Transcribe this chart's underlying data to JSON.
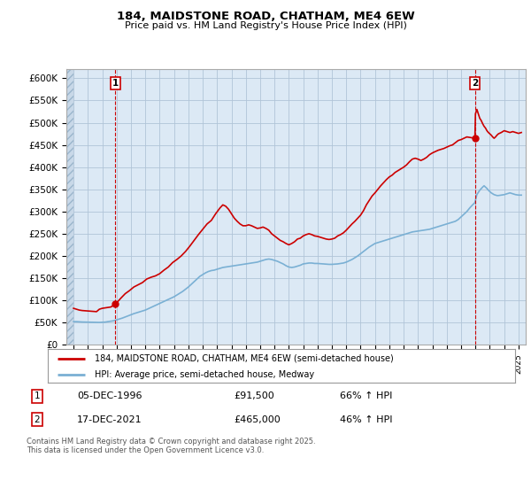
{
  "title": "184, MAIDSTONE ROAD, CHATHAM, ME4 6EW",
  "subtitle": "Price paid vs. HM Land Registry's House Price Index (HPI)",
  "ylim": [
    0,
    620000
  ],
  "yticks": [
    0,
    50000,
    100000,
    150000,
    200000,
    250000,
    300000,
    350000,
    400000,
    450000,
    500000,
    550000,
    600000
  ],
  "ytick_labels": [
    "£0",
    "£50K",
    "£100K",
    "£150K",
    "£200K",
    "£250K",
    "£300K",
    "£350K",
    "£400K",
    "£450K",
    "£500K",
    "£550K",
    "£600K"
  ],
  "xlim_start": 1993.5,
  "xlim_end": 2025.5,
  "xticks": [
    1994,
    1995,
    1996,
    1997,
    1998,
    1999,
    2000,
    2001,
    2002,
    2003,
    2004,
    2005,
    2006,
    2007,
    2008,
    2009,
    2010,
    2011,
    2012,
    2013,
    2014,
    2015,
    2016,
    2017,
    2018,
    2019,
    2020,
    2021,
    2022,
    2023,
    2024,
    2025
  ],
  "price_paid_color": "#cc0000",
  "hpi_color": "#7ab0d4",
  "marker1_year": 1996.92,
  "marker1_price": 91500,
  "marker2_year": 2021.96,
  "marker2_price": 465000,
  "legend_label_red": "184, MAIDSTONE ROAD, CHATHAM, ME4 6EW (semi-detached house)",
  "legend_label_blue": "HPI: Average price, semi-detached house, Medway",
  "table_row1": [
    "1",
    "05-DEC-1996",
    "£91,500",
    "66% ↑ HPI"
  ],
  "table_row2": [
    "2",
    "17-DEC-2021",
    "£465,000",
    "46% ↑ HPI"
  ],
  "footnote": "Contains HM Land Registry data © Crown copyright and database right 2025.\nThis data is licensed under the Open Government Licence v3.0.",
  "bg_color": "#ffffff",
  "chart_bg_color": "#dce9f5",
  "grid_color": "#b0c4d8",
  "hatch_bg_color": "#c8d8e8",
  "price_paid_data": [
    [
      1994.0,
      82000
    ],
    [
      1994.2,
      80000
    ],
    [
      1994.4,
      78000
    ],
    [
      1994.6,
      77000
    ],
    [
      1994.8,
      76500
    ],
    [
      1995.0,
      76000
    ],
    [
      1995.2,
      75500
    ],
    [
      1995.4,
      75000
    ],
    [
      1995.6,
      74500
    ],
    [
      1995.8,
      80000
    ],
    [
      1996.0,
      82000
    ],
    [
      1996.2,
      83000
    ],
    [
      1996.4,
      84000
    ],
    [
      1996.6,
      85000
    ],
    [
      1996.92,
      91500
    ],
    [
      1997.1,
      98000
    ],
    [
      1997.3,
      105000
    ],
    [
      1997.6,
      115000
    ],
    [
      1997.9,
      122000
    ],
    [
      1998.2,
      130000
    ],
    [
      1998.5,
      135000
    ],
    [
      1998.8,
      140000
    ],
    [
      1999.1,
      148000
    ],
    [
      1999.4,
      152000
    ],
    [
      1999.7,
      155000
    ],
    [
      2000.0,
      160000
    ],
    [
      2000.3,
      168000
    ],
    [
      2000.6,
      175000
    ],
    [
      2000.9,
      185000
    ],
    [
      2001.2,
      192000
    ],
    [
      2001.5,
      200000
    ],
    [
      2001.8,
      210000
    ],
    [
      2002.1,
      222000
    ],
    [
      2002.4,
      235000
    ],
    [
      2002.7,
      248000
    ],
    [
      2003.0,
      260000
    ],
    [
      2003.3,
      272000
    ],
    [
      2003.6,
      280000
    ],
    [
      2003.9,
      295000
    ],
    [
      2004.2,
      308000
    ],
    [
      2004.4,
      315000
    ],
    [
      2004.6,
      312000
    ],
    [
      2004.8,
      305000
    ],
    [
      2005.0,
      295000
    ],
    [
      2005.2,
      285000
    ],
    [
      2005.4,
      278000
    ],
    [
      2005.6,
      272000
    ],
    [
      2005.8,
      268000
    ],
    [
      2006.0,
      268000
    ],
    [
      2006.2,
      270000
    ],
    [
      2006.4,
      268000
    ],
    [
      2006.6,
      265000
    ],
    [
      2006.8,
      262000
    ],
    [
      2007.0,
      263000
    ],
    [
      2007.2,
      265000
    ],
    [
      2007.4,
      262000
    ],
    [
      2007.6,
      258000
    ],
    [
      2007.8,
      250000
    ],
    [
      2008.0,
      245000
    ],
    [
      2008.2,
      240000
    ],
    [
      2008.4,
      235000
    ],
    [
      2008.6,
      232000
    ],
    [
      2008.8,
      228000
    ],
    [
      2009.0,
      225000
    ],
    [
      2009.2,
      228000
    ],
    [
      2009.4,
      232000
    ],
    [
      2009.6,
      238000
    ],
    [
      2009.8,
      240000
    ],
    [
      2010.0,
      245000
    ],
    [
      2010.2,
      248000
    ],
    [
      2010.4,
      250000
    ],
    [
      2010.6,
      248000
    ],
    [
      2010.8,
      245000
    ],
    [
      2011.0,
      244000
    ],
    [
      2011.2,
      242000
    ],
    [
      2011.4,
      240000
    ],
    [
      2011.6,
      238000
    ],
    [
      2011.8,
      237000
    ],
    [
      2012.0,
      238000
    ],
    [
      2012.2,
      240000
    ],
    [
      2012.4,
      245000
    ],
    [
      2012.6,
      248000
    ],
    [
      2012.8,
      252000
    ],
    [
      2013.0,
      258000
    ],
    [
      2013.2,
      265000
    ],
    [
      2013.4,
      272000
    ],
    [
      2013.6,
      278000
    ],
    [
      2013.8,
      285000
    ],
    [
      2014.0,
      292000
    ],
    [
      2014.2,
      302000
    ],
    [
      2014.4,
      315000
    ],
    [
      2014.6,
      325000
    ],
    [
      2014.8,
      335000
    ],
    [
      2015.0,
      342000
    ],
    [
      2015.2,
      350000
    ],
    [
      2015.4,
      358000
    ],
    [
      2015.6,
      365000
    ],
    [
      2015.8,
      372000
    ],
    [
      2016.0,
      378000
    ],
    [
      2016.2,
      382000
    ],
    [
      2016.4,
      388000
    ],
    [
      2016.6,
      392000
    ],
    [
      2016.8,
      396000
    ],
    [
      2017.0,
      400000
    ],
    [
      2017.2,
      405000
    ],
    [
      2017.4,
      412000
    ],
    [
      2017.6,
      418000
    ],
    [
      2017.8,
      420000
    ],
    [
      2018.0,
      418000
    ],
    [
      2018.2,
      415000
    ],
    [
      2018.4,
      418000
    ],
    [
      2018.6,
      422000
    ],
    [
      2018.8,
      428000
    ],
    [
      2019.0,
      432000
    ],
    [
      2019.2,
      435000
    ],
    [
      2019.4,
      438000
    ],
    [
      2019.6,
      440000
    ],
    [
      2019.8,
      442000
    ],
    [
      2020.0,
      445000
    ],
    [
      2020.2,
      448000
    ],
    [
      2020.4,
      450000
    ],
    [
      2020.6,
      455000
    ],
    [
      2020.8,
      460000
    ],
    [
      2021.0,
      462000
    ],
    [
      2021.4,
      468000
    ],
    [
      2021.96,
      465000
    ],
    [
      2022.0,
      520000
    ],
    [
      2022.1,
      530000
    ],
    [
      2022.2,
      520000
    ],
    [
      2022.3,
      510000
    ],
    [
      2022.4,
      505000
    ],
    [
      2022.5,
      498000
    ],
    [
      2022.6,
      492000
    ],
    [
      2022.7,
      488000
    ],
    [
      2022.8,
      482000
    ],
    [
      2022.9,
      478000
    ],
    [
      2023.0,
      475000
    ],
    [
      2023.1,
      472000
    ],
    [
      2023.2,
      468000
    ],
    [
      2023.3,
      465000
    ],
    [
      2023.4,
      468000
    ],
    [
      2023.5,
      472000
    ],
    [
      2023.6,
      475000
    ],
    [
      2023.8,
      478000
    ],
    [
      2024.0,
      482000
    ],
    [
      2024.2,
      480000
    ],
    [
      2024.4,
      478000
    ],
    [
      2024.6,
      480000
    ],
    [
      2024.8,
      478000
    ],
    [
      2025.0,
      476000
    ],
    [
      2025.2,
      478000
    ]
  ],
  "hpi_data": [
    [
      1994.0,
      52000
    ],
    [
      1994.2,
      52000
    ],
    [
      1994.4,
      51500
    ],
    [
      1994.6,
      51200
    ],
    [
      1994.8,
      51000
    ],
    [
      1995.0,
      51000
    ],
    [
      1995.2,
      50800
    ],
    [
      1995.4,
      50500
    ],
    [
      1995.6,
      50300
    ],
    [
      1995.8,
      50200
    ],
    [
      1996.0,
      50500
    ],
    [
      1996.2,
      51000
    ],
    [
      1996.4,
      52000
    ],
    [
      1996.6,
      53000
    ],
    [
      1996.8,
      54000
    ],
    [
      1997.0,
      56000
    ],
    [
      1997.2,
      58000
    ],
    [
      1997.4,
      60000
    ],
    [
      1997.6,
      62500
    ],
    [
      1997.8,
      65000
    ],
    [
      1998.0,
      67500
    ],
    [
      1998.2,
      70000
    ],
    [
      1998.4,
      72000
    ],
    [
      1998.6,
      74000
    ],
    [
      1998.8,
      76000
    ],
    [
      1999.0,
      78000
    ],
    [
      1999.2,
      81000
    ],
    [
      1999.4,
      84000
    ],
    [
      1999.6,
      87000
    ],
    [
      1999.8,
      90000
    ],
    [
      2000.0,
      93000
    ],
    [
      2000.2,
      96000
    ],
    [
      2000.4,
      99000
    ],
    [
      2000.6,
      102000
    ],
    [
      2000.8,
      105000
    ],
    [
      2001.0,
      108000
    ],
    [
      2001.2,
      112000
    ],
    [
      2001.4,
      116000
    ],
    [
      2001.6,
      120000
    ],
    [
      2001.8,
      125000
    ],
    [
      2002.0,
      130000
    ],
    [
      2002.2,
      136000
    ],
    [
      2002.4,
      142000
    ],
    [
      2002.6,
      148000
    ],
    [
      2002.8,
      154000
    ],
    [
      2003.0,
      158000
    ],
    [
      2003.2,
      162000
    ],
    [
      2003.4,
      165000
    ],
    [
      2003.6,
      167000
    ],
    [
      2003.8,
      168000
    ],
    [
      2004.0,
      170000
    ],
    [
      2004.2,
      172000
    ],
    [
      2004.4,
      174000
    ],
    [
      2004.6,
      175000
    ],
    [
      2004.8,
      176000
    ],
    [
      2005.0,
      177000
    ],
    [
      2005.2,
      178000
    ],
    [
      2005.4,
      179000
    ],
    [
      2005.6,
      180000
    ],
    [
      2005.8,
      181000
    ],
    [
      2006.0,
      182000
    ],
    [
      2006.2,
      183000
    ],
    [
      2006.4,
      184000
    ],
    [
      2006.6,
      185000
    ],
    [
      2006.8,
      186000
    ],
    [
      2007.0,
      188000
    ],
    [
      2007.2,
      190000
    ],
    [
      2007.4,
      192000
    ],
    [
      2007.6,
      193000
    ],
    [
      2007.8,
      192000
    ],
    [
      2008.0,
      190000
    ],
    [
      2008.2,
      188000
    ],
    [
      2008.4,
      185000
    ],
    [
      2008.6,
      182000
    ],
    [
      2008.8,
      178000
    ],
    [
      2009.0,
      175000
    ],
    [
      2009.2,
      174000
    ],
    [
      2009.4,
      175000
    ],
    [
      2009.6,
      177000
    ],
    [
      2009.8,
      179000
    ],
    [
      2010.0,
      182000
    ],
    [
      2010.2,
      183000
    ],
    [
      2010.4,
      184000
    ],
    [
      2010.6,
      184000
    ],
    [
      2010.8,
      183000
    ],
    [
      2011.0,
      183000
    ],
    [
      2011.2,
      182500
    ],
    [
      2011.4,
      182000
    ],
    [
      2011.6,
      181500
    ],
    [
      2011.8,
      181000
    ],
    [
      2012.0,
      181000
    ],
    [
      2012.2,
      181500
    ],
    [
      2012.4,
      182000
    ],
    [
      2012.6,
      183000
    ],
    [
      2012.8,
      184000
    ],
    [
      2013.0,
      186000
    ],
    [
      2013.2,
      189000
    ],
    [
      2013.4,
      192000
    ],
    [
      2013.6,
      196000
    ],
    [
      2013.8,
      200000
    ],
    [
      2014.0,
      205000
    ],
    [
      2014.2,
      210000
    ],
    [
      2014.4,
      215000
    ],
    [
      2014.6,
      220000
    ],
    [
      2014.8,
      224000
    ],
    [
      2015.0,
      228000
    ],
    [
      2015.2,
      230000
    ],
    [
      2015.4,
      232000
    ],
    [
      2015.6,
      234000
    ],
    [
      2015.8,
      236000
    ],
    [
      2016.0,
      238000
    ],
    [
      2016.2,
      240000
    ],
    [
      2016.4,
      242000
    ],
    [
      2016.6,
      244000
    ],
    [
      2016.8,
      246000
    ],
    [
      2017.0,
      248000
    ],
    [
      2017.2,
      250000
    ],
    [
      2017.4,
      252000
    ],
    [
      2017.6,
      254000
    ],
    [
      2017.8,
      255000
    ],
    [
      2018.0,
      256000
    ],
    [
      2018.2,
      257000
    ],
    [
      2018.4,
      258000
    ],
    [
      2018.6,
      259000
    ],
    [
      2018.8,
      260000
    ],
    [
      2019.0,
      262000
    ],
    [
      2019.2,
      264000
    ],
    [
      2019.4,
      266000
    ],
    [
      2019.6,
      268000
    ],
    [
      2019.8,
      270000
    ],
    [
      2020.0,
      272000
    ],
    [
      2020.2,
      274000
    ],
    [
      2020.4,
      276000
    ],
    [
      2020.6,
      278000
    ],
    [
      2020.8,
      282000
    ],
    [
      2021.0,
      288000
    ],
    [
      2021.2,
      294000
    ],
    [
      2021.4,
      300000
    ],
    [
      2021.6,
      308000
    ],
    [
      2021.8,
      315000
    ],
    [
      2021.96,
      320000
    ],
    [
      2022.1,
      338000
    ],
    [
      2022.3,
      348000
    ],
    [
      2022.5,
      355000
    ],
    [
      2022.6,
      358000
    ],
    [
      2022.7,
      355000
    ],
    [
      2022.8,
      352000
    ],
    [
      2022.9,
      348000
    ],
    [
      2023.0,
      345000
    ],
    [
      2023.1,
      342000
    ],
    [
      2023.2,
      340000
    ],
    [
      2023.3,
      338000
    ],
    [
      2023.4,
      337000
    ],
    [
      2023.5,
      336000
    ],
    [
      2023.6,
      336000
    ],
    [
      2023.8,
      337000
    ],
    [
      2024.0,
      338000
    ],
    [
      2024.2,
      340000
    ],
    [
      2024.4,
      342000
    ],
    [
      2024.6,
      340000
    ],
    [
      2024.8,
      338000
    ],
    [
      2025.0,
      337000
    ],
    [
      2025.2,
      337000
    ]
  ]
}
